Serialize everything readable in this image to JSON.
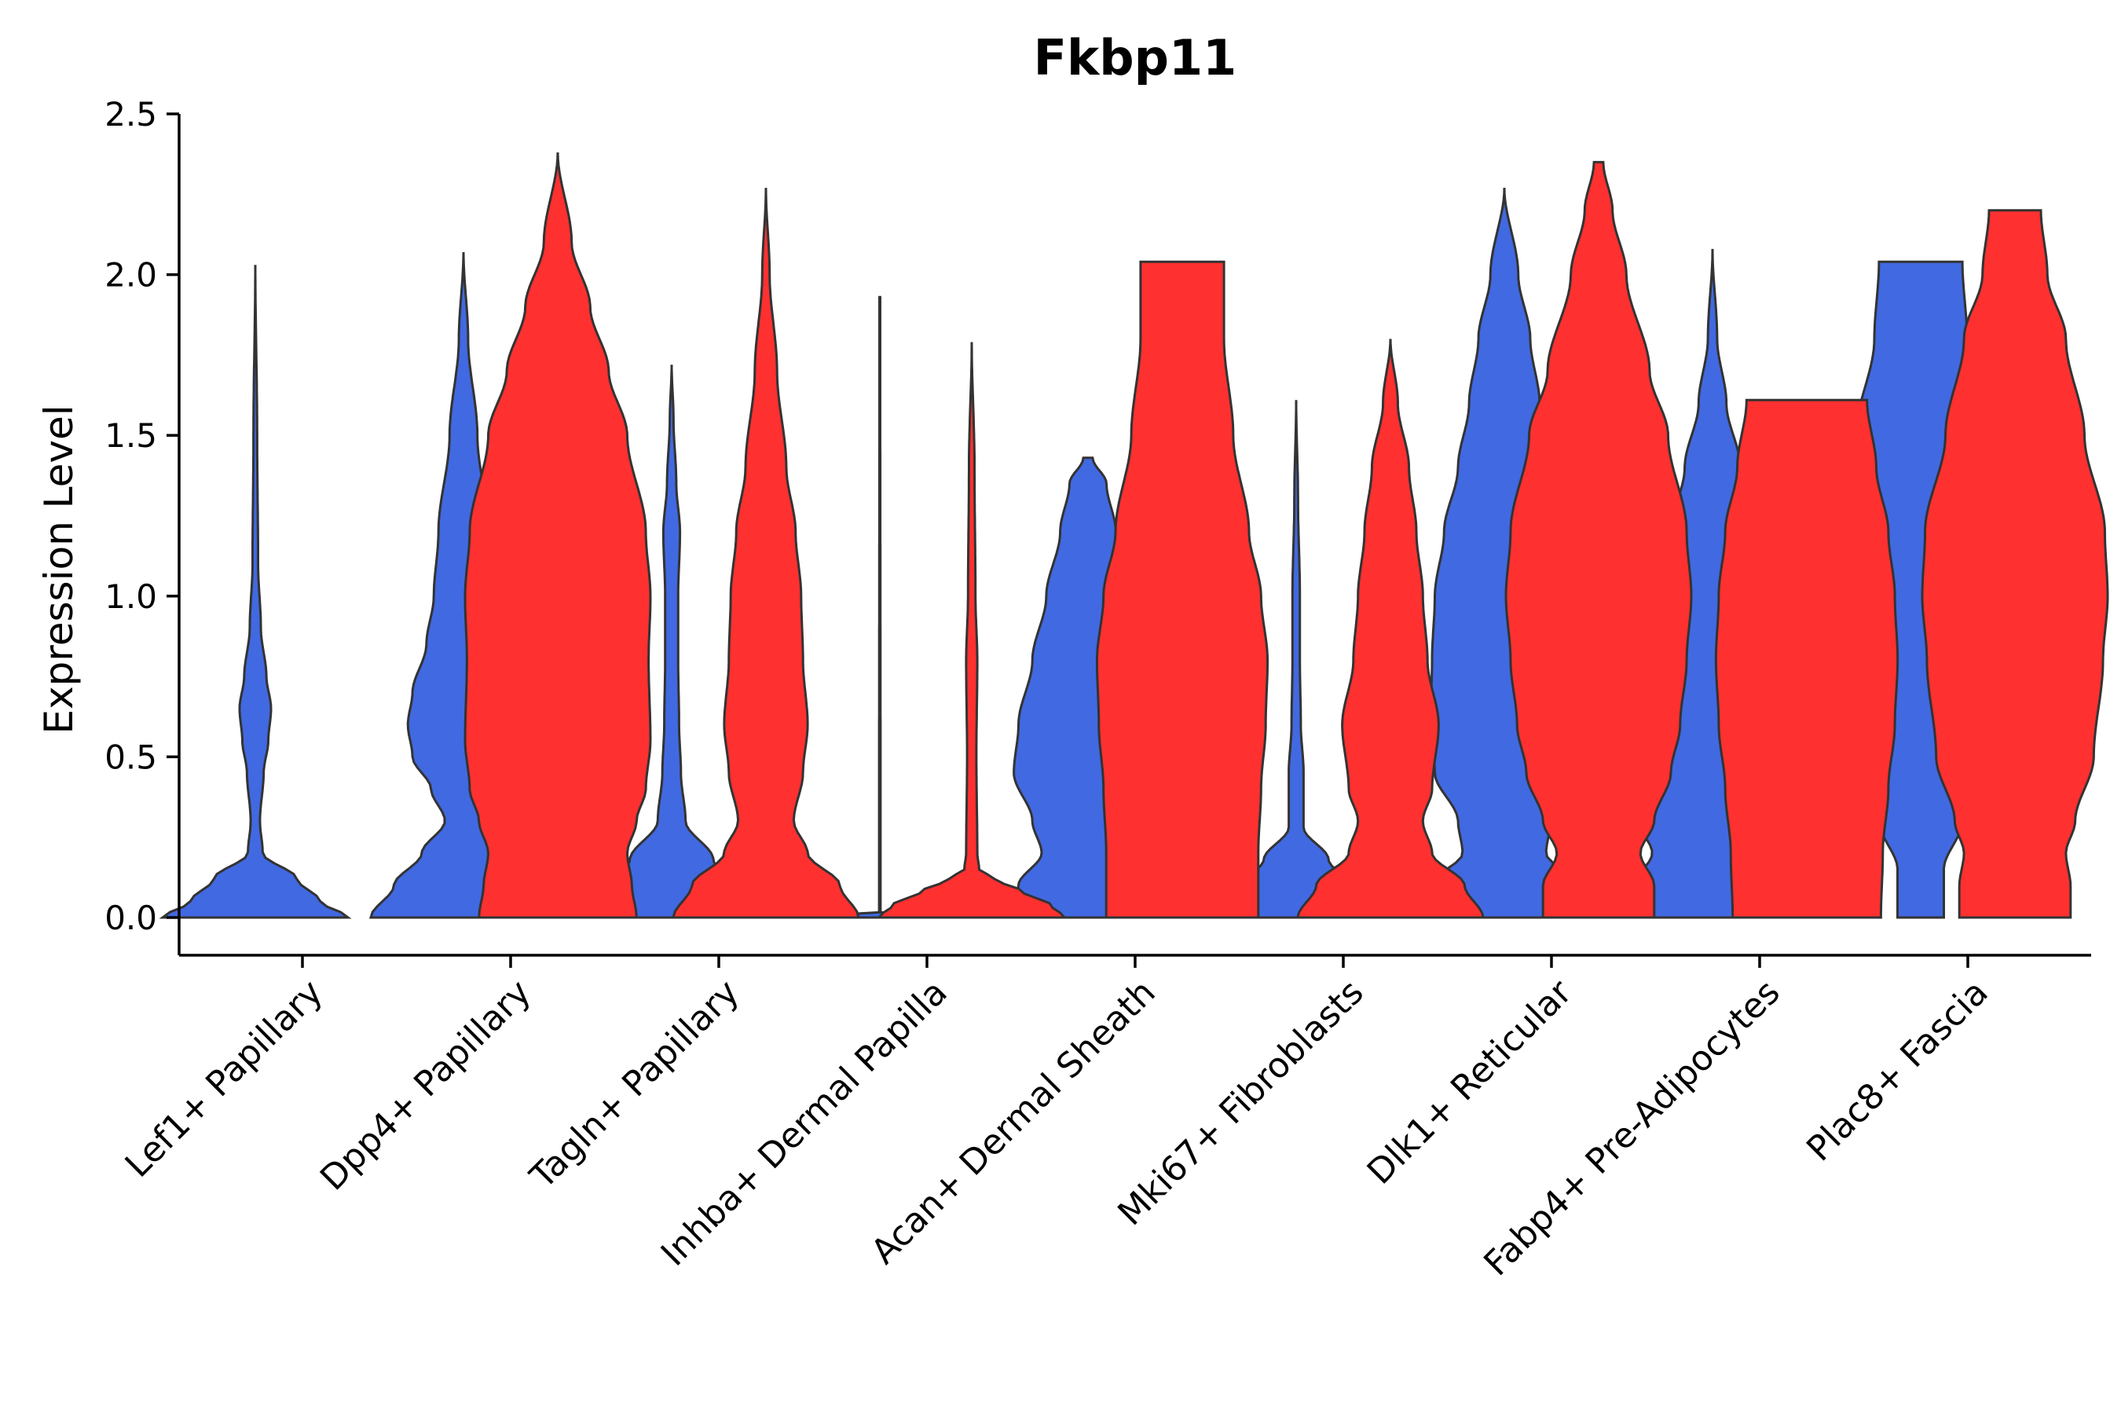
{
  "chart_data": {
    "type": "violin",
    "title": "Fkbp11",
    "ylabel": "Expression Level",
    "xlabel": "",
    "ylim": [
      -0.12,
      2.5
    ],
    "yticks": [
      "0.0",
      "0.5",
      "1.0",
      "1.5",
      "2.0",
      "2.5"
    ],
    "categories": [
      "Lef1+ Papillary",
      "Dpp4+ Papillary",
      "Tagln+ Papillary",
      "Inhba+ Dermal Papilla",
      "Acan+ Dermal Sheath",
      "Mki67+ Fibroblasts",
      "Dlk1+ Reticular",
      "Fabp4+ Pre-Adipocytes",
      "Plac8+ Fascia"
    ],
    "series": [
      {
        "name": "blue group",
        "color": "#4169E1",
        "violins": [
          {
            "max": 2.03,
            "profile": [
              [
                0.0,
                1.0
              ],
              [
                0.05,
                0.7
              ],
              [
                0.12,
                0.45
              ],
              [
                0.2,
                0.08
              ],
              [
                0.3,
                0.05
              ],
              [
                0.45,
                0.09
              ],
              [
                0.55,
                0.14
              ],
              [
                0.65,
                0.17
              ],
              [
                0.75,
                0.12
              ],
              [
                0.9,
                0.06
              ],
              [
                1.1,
                0.03
              ],
              [
                1.5,
                0.02
              ],
              [
                2.03,
                0.0
              ]
            ]
          },
          {
            "max": 2.07,
            "profile": [
              [
                0.0,
                1.0
              ],
              [
                0.1,
                0.75
              ],
              [
                0.2,
                0.45
              ],
              [
                0.3,
                0.2
              ],
              [
                0.4,
                0.35
              ],
              [
                0.5,
                0.55
              ],
              [
                0.6,
                0.6
              ],
              [
                0.7,
                0.55
              ],
              [
                0.85,
                0.4
              ],
              [
                1.0,
                0.32
              ],
              [
                1.2,
                0.27
              ],
              [
                1.5,
                0.15
              ],
              [
                1.8,
                0.05
              ],
              [
                2.07,
                0.0
              ]
            ]
          },
          {
            "max": 1.72,
            "profile": [
              [
                0.0,
                1.0
              ],
              [
                0.08,
                0.8
              ],
              [
                0.18,
                0.45
              ],
              [
                0.3,
                0.15
              ],
              [
                0.45,
                0.1
              ],
              [
                0.6,
                0.08
              ],
              [
                0.8,
                0.07
              ],
              [
                1.0,
                0.07
              ],
              [
                1.2,
                0.09
              ],
              [
                1.35,
                0.05
              ],
              [
                1.55,
                0.02
              ],
              [
                1.72,
                0.0
              ]
            ]
          },
          {
            "max": 1.93,
            "profile": [
              [
                0.0,
                1.0
              ],
              [
                0.002,
                0.02
              ],
              [
                0.005,
                0.008
              ],
              [
                0.1,
                0.008
              ],
              [
                1.93,
                0.004
              ]
            ]
          },
          {
            "max": 1.43,
            "profile": [
              [
                0.0,
                1.0
              ],
              [
                0.1,
                0.75
              ],
              [
                0.2,
                0.5
              ],
              [
                0.3,
                0.6
              ],
              [
                0.45,
                0.8
              ],
              [
                0.6,
                0.75
              ],
              [
                0.8,
                0.6
              ],
              [
                1.0,
                0.45
              ],
              [
                1.2,
                0.3
              ],
              [
                1.35,
                0.2
              ],
              [
                1.43,
                0.05
              ]
            ]
          },
          {
            "max": 1.61,
            "profile": [
              [
                0.0,
                1.0
              ],
              [
                0.08,
                0.7
              ],
              [
                0.18,
                0.35
              ],
              [
                0.28,
                0.08
              ],
              [
                0.45,
                0.08
              ],
              [
                0.6,
                0.05
              ],
              [
                0.8,
                0.04
              ],
              [
                1.0,
                0.04
              ],
              [
                1.3,
                0.02
              ],
              [
                1.61,
                0.0
              ]
            ]
          },
          {
            "max": 2.27,
            "profile": [
              [
                0.0,
                1.0
              ],
              [
                0.1,
                0.8
              ],
              [
                0.2,
                0.45
              ],
              [
                0.3,
                0.5
              ],
              [
                0.45,
                0.75
              ],
              [
                0.6,
                0.8
              ],
              [
                0.8,
                0.78
              ],
              [
                1.0,
                0.75
              ],
              [
                1.2,
                0.65
              ],
              [
                1.4,
                0.5
              ],
              [
                1.6,
                0.38
              ],
              [
                1.8,
                0.28
              ],
              [
                2.0,
                0.15
              ],
              [
                2.27,
                0.0
              ]
            ]
          },
          {
            "max": 2.08,
            "profile": [
              [
                0.0,
                1.0
              ],
              [
                0.1,
                0.85
              ],
              [
                0.2,
                0.65
              ],
              [
                0.3,
                0.8
              ],
              [
                0.45,
                0.95
              ],
              [
                0.6,
                0.85
              ],
              [
                0.8,
                0.7
              ],
              [
                1.0,
                0.6
              ],
              [
                1.2,
                0.45
              ],
              [
                1.4,
                0.3
              ],
              [
                1.6,
                0.15
              ],
              [
                1.8,
                0.05
              ],
              [
                2.08,
                0.0
              ]
            ]
          },
          {
            "max": 2.04,
            "profile": [
              [
                0.0,
                0.25
              ],
              [
                0.15,
                0.25
              ],
              [
                0.3,
                0.45
              ],
              [
                0.5,
                0.65
              ],
              [
                0.8,
                0.9
              ],
              [
                1.0,
                1.0
              ],
              [
                1.2,
                0.92
              ],
              [
                1.5,
                0.7
              ],
              [
                1.8,
                0.5
              ],
              [
                2.04,
                0.45
              ]
            ]
          }
        ]
      },
      {
        "name": "red group",
        "color": "#FF3030",
        "violins": [
          {
            "max": 0.0,
            "profile": []
          },
          {
            "max": 2.38,
            "profile": [
              [
                0.0,
                0.85
              ],
              [
                0.1,
                0.8
              ],
              [
                0.2,
                0.75
              ],
              [
                0.3,
                0.85
              ],
              [
                0.4,
                0.95
              ],
              [
                0.55,
                1.0
              ],
              [
                0.8,
                0.98
              ],
              [
                1.0,
                1.0
              ],
              [
                1.2,
                0.95
              ],
              [
                1.5,
                0.75
              ],
              [
                1.7,
                0.55
              ],
              [
                1.9,
                0.35
              ],
              [
                2.1,
                0.15
              ],
              [
                2.38,
                0.0
              ]
            ]
          },
          {
            "max": 2.27,
            "profile": [
              [
                0.0,
                1.0
              ],
              [
                0.1,
                0.8
              ],
              [
                0.2,
                0.45
              ],
              [
                0.3,
                0.3
              ],
              [
                0.45,
                0.4
              ],
              [
                0.6,
                0.45
              ],
              [
                0.8,
                0.4
              ],
              [
                1.0,
                0.38
              ],
              [
                1.2,
                0.32
              ],
              [
                1.4,
                0.22
              ],
              [
                1.7,
                0.12
              ],
              [
                2.0,
                0.04
              ],
              [
                2.27,
                0.0
              ]
            ]
          },
          {
            "max": 1.79,
            "profile": [
              [
                0.0,
                1.0
              ],
              [
                0.04,
                0.85
              ],
              [
                0.08,
                0.55
              ],
              [
                0.12,
                0.25
              ],
              [
                0.15,
                0.08
              ],
              [
                0.2,
                0.06
              ],
              [
                0.5,
                0.05
              ],
              [
                0.8,
                0.06
              ],
              [
                1.0,
                0.04
              ],
              [
                1.4,
                0.03
              ],
              [
                1.79,
                0.0
              ]
            ]
          },
          {
            "max": 2.04,
            "profile": [
              [
                0.0,
                0.82
              ],
              [
                0.2,
                0.82
              ],
              [
                0.4,
                0.85
              ],
              [
                0.6,
                0.9
              ],
              [
                0.8,
                0.92
              ],
              [
                1.0,
                0.85
              ],
              [
                1.2,
                0.72
              ],
              [
                1.5,
                0.55
              ],
              [
                1.8,
                0.45
              ],
              [
                2.04,
                0.45
              ]
            ]
          },
          {
            "max": 1.8,
            "profile": [
              [
                0.0,
                1.0
              ],
              [
                0.1,
                0.8
              ],
              [
                0.2,
                0.45
              ],
              [
                0.3,
                0.35
              ],
              [
                0.4,
                0.45
              ],
              [
                0.6,
                0.52
              ],
              [
                0.8,
                0.4
              ],
              [
                1.0,
                0.35
              ],
              [
                1.2,
                0.28
              ],
              [
                1.4,
                0.2
              ],
              [
                1.6,
                0.08
              ],
              [
                1.8,
                0.0
              ]
            ]
          },
          {
            "max": 2.35,
            "profile": [
              [
                0.0,
                0.6
              ],
              [
                0.1,
                0.6
              ],
              [
                0.2,
                0.45
              ],
              [
                0.3,
                0.6
              ],
              [
                0.45,
                0.78
              ],
              [
                0.6,
                0.88
              ],
              [
                0.8,
                0.95
              ],
              [
                1.0,
                1.0
              ],
              [
                1.2,
                0.95
              ],
              [
                1.5,
                0.75
              ],
              [
                1.7,
                0.55
              ],
              [
                2.0,
                0.3
              ],
              [
                2.2,
                0.15
              ],
              [
                2.35,
                0.05
              ]
            ]
          },
          {
            "max": 1.61,
            "profile": [
              [
                0.0,
                0.8
              ],
              [
                0.2,
                0.82
              ],
              [
                0.4,
                0.88
              ],
              [
                0.6,
                0.95
              ],
              [
                0.8,
                0.98
              ],
              [
                1.0,
                0.95
              ],
              [
                1.2,
                0.88
              ],
              [
                1.4,
                0.75
              ],
              [
                1.61,
                0.65
              ]
            ]
          },
          {
            "max": 2.2,
            "profile": [
              [
                0.0,
                0.6
              ],
              [
                0.1,
                0.6
              ],
              [
                0.2,
                0.55
              ],
              [
                0.3,
                0.65
              ],
              [
                0.5,
                0.85
              ],
              [
                0.8,
                0.95
              ],
              [
                1.0,
                1.0
              ],
              [
                1.2,
                0.97
              ],
              [
                1.5,
                0.75
              ],
              [
                1.8,
                0.55
              ],
              [
                2.0,
                0.35
              ],
              [
                2.2,
                0.28
              ]
            ]
          }
        ]
      }
    ]
  }
}
